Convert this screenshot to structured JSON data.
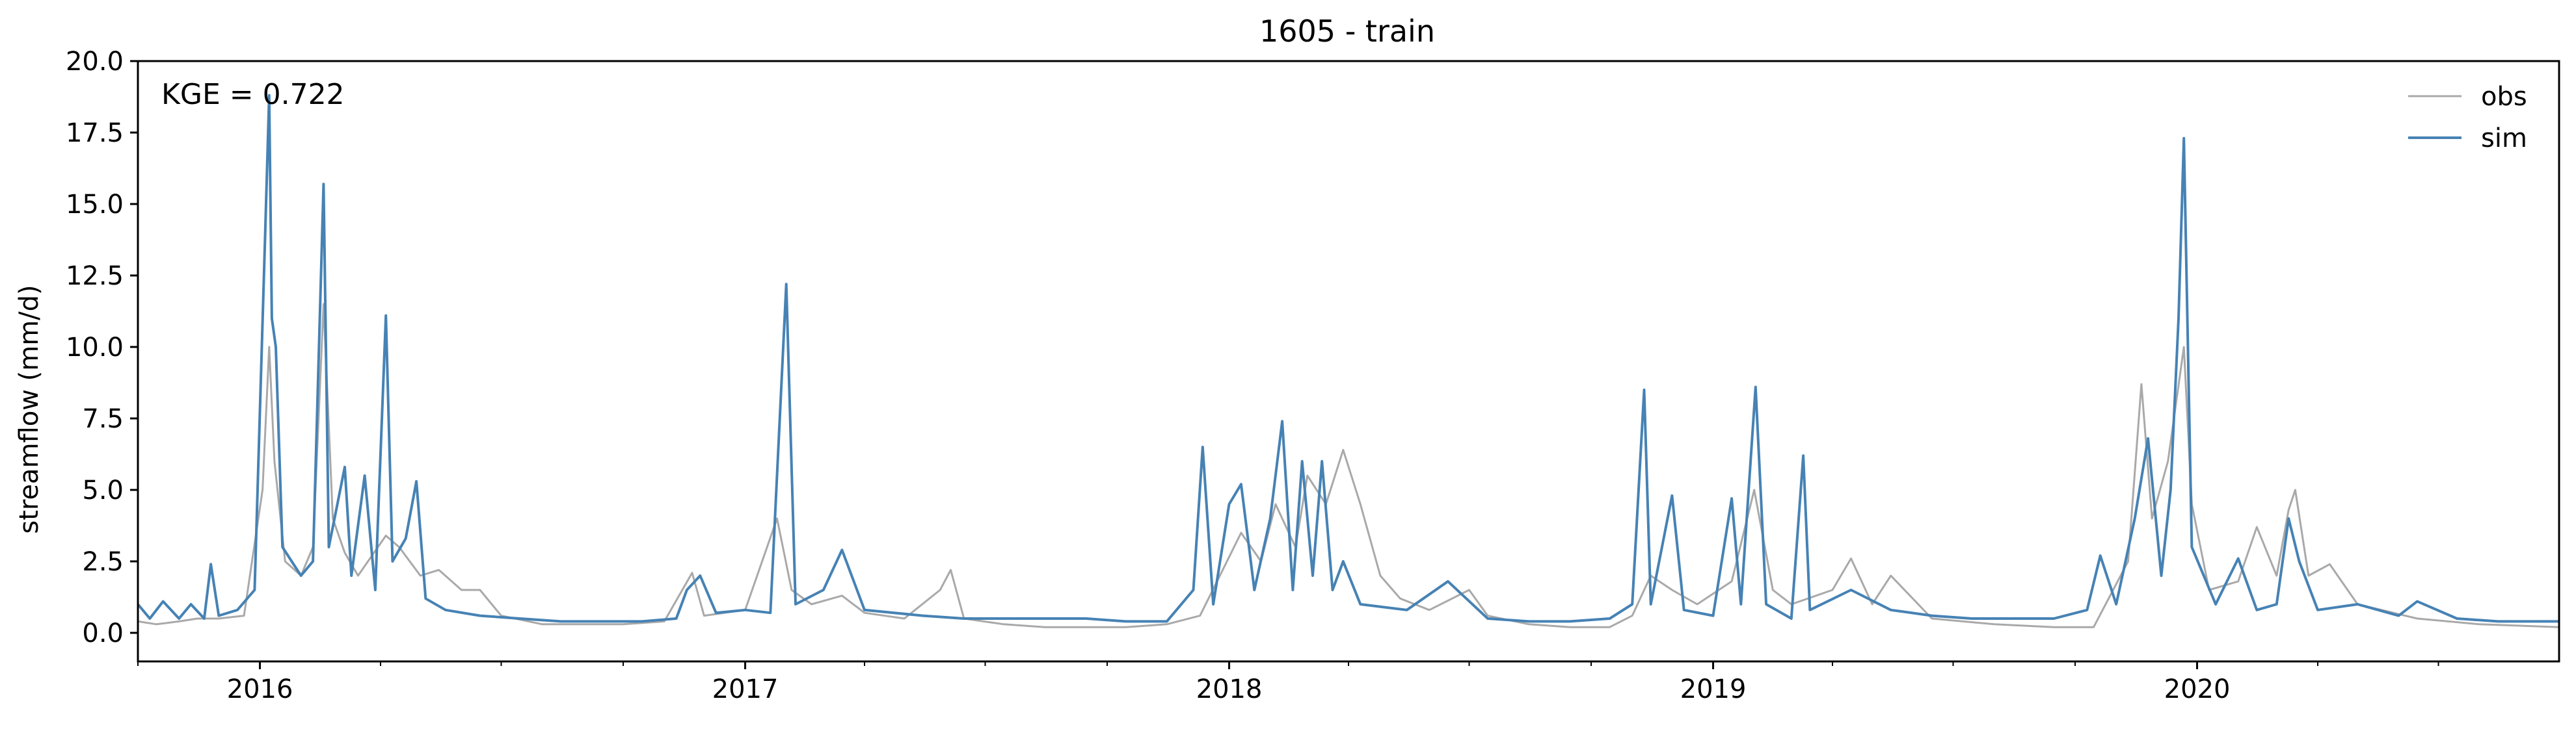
{
  "chart_data": {
    "type": "line",
    "title": "1605 - train",
    "xlabel": "",
    "ylabel": "streamflow (mm/d)",
    "annotation": "KGE = 0.722",
    "xlim": [
      "2015-10-01",
      "2020-09-30"
    ],
    "ylim": [
      -1.0,
      20.0
    ],
    "x_ticks": [
      "2016",
      "2017",
      "2018",
      "2019",
      "2020"
    ],
    "x_tick_dates": [
      "2016-01-01",
      "2017-01-01",
      "2018-01-01",
      "2019-01-01",
      "2020-01-01"
    ],
    "y_ticks": [
      "0.0",
      "2.5",
      "5.0",
      "7.5",
      "10.0",
      "12.5",
      "15.0",
      "17.5",
      "20.0"
    ],
    "y_tick_values": [
      0.0,
      2.5,
      5.0,
      7.5,
      10.0,
      12.5,
      15.0,
      17.5,
      20.0
    ],
    "legend_position": "upper right",
    "grid": false,
    "series": [
      {
        "name": "obs",
        "color": "#a9a9a9",
        "points": [
          [
            "2015-10-01",
            0.4
          ],
          [
            "2015-10-15",
            0.3
          ],
          [
            "2015-11-01",
            0.4
          ],
          [
            "2015-11-15",
            0.5
          ],
          [
            "2015-12-01",
            0.5
          ],
          [
            "2015-12-20",
            0.6
          ],
          [
            "2016-01-03",
            5.0
          ],
          [
            "2016-01-08",
            10.0
          ],
          [
            "2016-01-12",
            6.0
          ],
          [
            "2016-01-20",
            2.5
          ],
          [
            "2016-02-01",
            2.0
          ],
          [
            "2016-02-10",
            3.0
          ],
          [
            "2016-02-18",
            11.5
          ],
          [
            "2016-02-25",
            4.0
          ],
          [
            "2016-03-05",
            2.8
          ],
          [
            "2016-03-15",
            2.0
          ],
          [
            "2016-04-05",
            3.4
          ],
          [
            "2016-04-15",
            3.0
          ],
          [
            "2016-05-01",
            2.0
          ],
          [
            "2016-05-15",
            2.2
          ],
          [
            "2016-06-01",
            1.5
          ],
          [
            "2016-06-15",
            1.5
          ],
          [
            "2016-07-01",
            0.6
          ],
          [
            "2016-08-01",
            0.3
          ],
          [
            "2016-09-01",
            0.3
          ],
          [
            "2016-10-01",
            0.3
          ],
          [
            "2016-11-01",
            0.4
          ],
          [
            "2016-11-22",
            2.1
          ],
          [
            "2016-12-01",
            0.6
          ],
          [
            "2017-01-01",
            0.8
          ],
          [
            "2017-01-25",
            4.0
          ],
          [
            "2017-02-05",
            1.5
          ],
          [
            "2017-02-20",
            1.0
          ],
          [
            "2017-03-15",
            1.3
          ],
          [
            "2017-04-01",
            0.7
          ],
          [
            "2017-05-01",
            0.5
          ],
          [
            "2017-05-28",
            1.5
          ],
          [
            "2017-06-05",
            2.2
          ],
          [
            "2017-06-15",
            0.5
          ],
          [
            "2017-07-15",
            0.3
          ],
          [
            "2017-08-15",
            0.2
          ],
          [
            "2017-09-15",
            0.2
          ],
          [
            "2017-10-15",
            0.2
          ],
          [
            "2017-11-15",
            0.3
          ],
          [
            "2017-12-10",
            0.6
          ],
          [
            "2017-12-25",
            2.0
          ],
          [
            "2018-01-10",
            3.5
          ],
          [
            "2018-01-25",
            2.5
          ],
          [
            "2018-02-05",
            4.5
          ],
          [
            "2018-02-20",
            3.0
          ],
          [
            "2018-03-01",
            5.5
          ],
          [
            "2018-03-15",
            4.5
          ],
          [
            "2018-03-28",
            6.4
          ],
          [
            "2018-04-10",
            4.5
          ],
          [
            "2018-04-25",
            2.0
          ],
          [
            "2018-05-10",
            1.2
          ],
          [
            "2018-06-01",
            0.8
          ],
          [
            "2018-07-01",
            1.5
          ],
          [
            "2018-07-15",
            0.6
          ],
          [
            "2018-08-15",
            0.3
          ],
          [
            "2018-09-15",
            0.2
          ],
          [
            "2018-10-15",
            0.2
          ],
          [
            "2018-11-01",
            0.6
          ],
          [
            "2018-11-15",
            2.0
          ],
          [
            "2018-12-01",
            1.5
          ],
          [
            "2018-12-20",
            1.0
          ],
          [
            "2019-01-15",
            1.8
          ],
          [
            "2019-02-01",
            5.0
          ],
          [
            "2019-02-15",
            1.5
          ],
          [
            "2019-03-01",
            1.0
          ],
          [
            "2019-04-01",
            1.5
          ],
          [
            "2019-04-15",
            2.6
          ],
          [
            "2019-05-01",
            1.0
          ],
          [
            "2019-05-15",
            2.0
          ],
          [
            "2019-06-15",
            0.5
          ],
          [
            "2019-08-01",
            0.3
          ],
          [
            "2019-09-15",
            0.2
          ],
          [
            "2019-10-15",
            0.2
          ],
          [
            "2019-11-10",
            2.5
          ],
          [
            "2019-11-20",
            8.7
          ],
          [
            "2019-11-28",
            4.0
          ],
          [
            "2019-12-10",
            6.0
          ],
          [
            "2019-12-22",
            10.0
          ],
          [
            "2019-12-28",
            4.5
          ],
          [
            "2020-01-10",
            1.5
          ],
          [
            "2020-02-01",
            1.8
          ],
          [
            "2020-02-15",
            3.7
          ],
          [
            "2020-03-01",
            2.0
          ],
          [
            "2020-03-10",
            4.3
          ],
          [
            "2020-03-15",
            5.0
          ],
          [
            "2020-03-25",
            2.0
          ],
          [
            "2020-04-10",
            2.4
          ],
          [
            "2020-05-01",
            1.0
          ],
          [
            "2020-06-15",
            0.5
          ],
          [
            "2020-08-01",
            0.3
          ],
          [
            "2020-09-30",
            0.2
          ]
        ]
      },
      {
        "name": "sim",
        "color": "#4682b4",
        "points": [
          [
            "2015-10-01",
            1.0
          ],
          [
            "2015-10-10",
            0.5
          ],
          [
            "2015-10-20",
            1.1
          ],
          [
            "2015-11-01",
            0.5
          ],
          [
            "2015-11-10",
            1.0
          ],
          [
            "2015-11-20",
            0.5
          ],
          [
            "2015-11-25",
            2.4
          ],
          [
            "2015-12-01",
            0.6
          ],
          [
            "2015-12-15",
            0.8
          ],
          [
            "2015-12-28",
            1.5
          ],
          [
            "2016-01-05",
            14.0
          ],
          [
            "2016-01-08",
            18.8
          ],
          [
            "2016-01-10",
            11.0
          ],
          [
            "2016-01-13",
            10.0
          ],
          [
            "2016-01-18",
            3.0
          ],
          [
            "2016-02-01",
            2.0
          ],
          [
            "2016-02-10",
            2.5
          ],
          [
            "2016-02-18",
            15.7
          ],
          [
            "2016-02-22",
            3.0
          ],
          [
            "2016-03-05",
            5.8
          ],
          [
            "2016-03-10",
            2.0
          ],
          [
            "2016-03-20",
            5.5
          ],
          [
            "2016-03-28",
            1.5
          ],
          [
            "2016-04-05",
            11.1
          ],
          [
            "2016-04-10",
            2.5
          ],
          [
            "2016-04-20",
            3.3
          ],
          [
            "2016-04-28",
            5.3
          ],
          [
            "2016-05-05",
            1.2
          ],
          [
            "2016-05-20",
            0.8
          ],
          [
            "2016-06-15",
            0.6
          ],
          [
            "2016-07-15",
            0.5
          ],
          [
            "2016-08-15",
            0.4
          ],
          [
            "2016-09-15",
            0.4
          ],
          [
            "2016-10-15",
            0.4
          ],
          [
            "2016-11-10",
            0.5
          ],
          [
            "2016-11-18",
            1.5
          ],
          [
            "2016-11-28",
            2.0
          ],
          [
            "2016-12-10",
            0.7
          ],
          [
            "2017-01-01",
            0.8
          ],
          [
            "2017-01-20",
            0.7
          ],
          [
            "2017-02-01",
            12.2
          ],
          [
            "2017-02-08",
            1.0
          ],
          [
            "2017-03-01",
            1.5
          ],
          [
            "2017-03-15",
            2.9
          ],
          [
            "2017-04-01",
            0.8
          ],
          [
            "2017-05-15",
            0.6
          ],
          [
            "2017-06-15",
            0.5
          ],
          [
            "2017-07-15",
            0.5
          ],
          [
            "2017-08-15",
            0.5
          ],
          [
            "2017-09-15",
            0.5
          ],
          [
            "2017-10-15",
            0.4
          ],
          [
            "2017-11-15",
            0.4
          ],
          [
            "2017-12-05",
            1.5
          ],
          [
            "2017-12-12",
            6.5
          ],
          [
            "2017-12-20",
            1.0
          ],
          [
            "2018-01-01",
            4.5
          ],
          [
            "2018-01-10",
            5.2
          ],
          [
            "2018-01-20",
            1.5
          ],
          [
            "2018-02-01",
            4.0
          ],
          [
            "2018-02-10",
            7.4
          ],
          [
            "2018-02-18",
            1.5
          ],
          [
            "2018-02-25",
            6.0
          ],
          [
            "2018-03-05",
            2.0
          ],
          [
            "2018-03-12",
            6.0
          ],
          [
            "2018-03-20",
            1.5
          ],
          [
            "2018-03-28",
            2.5
          ],
          [
            "2018-04-10",
            1.0
          ],
          [
            "2018-05-15",
            0.8
          ],
          [
            "2018-06-15",
            1.8
          ],
          [
            "2018-07-15",
            0.5
          ],
          [
            "2018-08-15",
            0.4
          ],
          [
            "2018-09-15",
            0.4
          ],
          [
            "2018-10-15",
            0.5
          ],
          [
            "2018-11-01",
            1.0
          ],
          [
            "2018-11-10",
            8.5
          ],
          [
            "2018-11-15",
            1.0
          ],
          [
            "2018-12-01",
            4.8
          ],
          [
            "2018-12-10",
            0.8
          ],
          [
            "2019-01-01",
            0.6
          ],
          [
            "2019-01-15",
            4.7
          ],
          [
            "2019-01-22",
            1.0
          ],
          [
            "2019-02-02",
            8.6
          ],
          [
            "2019-02-10",
            1.0
          ],
          [
            "2019-03-01",
            0.5
          ],
          [
            "2019-03-10",
            6.2
          ],
          [
            "2019-03-15",
            0.8
          ],
          [
            "2019-04-15",
            1.5
          ],
          [
            "2019-05-15",
            0.8
          ],
          [
            "2019-06-15",
            0.6
          ],
          [
            "2019-07-15",
            0.5
          ],
          [
            "2019-08-15",
            0.5
          ],
          [
            "2019-09-15",
            0.5
          ],
          [
            "2019-10-10",
            0.8
          ],
          [
            "2019-10-20",
            2.7
          ],
          [
            "2019-11-01",
            1.0
          ],
          [
            "2019-11-15",
            4.0
          ],
          [
            "2019-11-25",
            6.8
          ],
          [
            "2019-12-05",
            2.0
          ],
          [
            "2019-12-12",
            5.0
          ],
          [
            "2019-12-18",
            11.0
          ],
          [
            "2019-12-22",
            17.3
          ],
          [
            "2019-12-28",
            3.0
          ],
          [
            "2020-01-15",
            1.0
          ],
          [
            "2020-02-01",
            2.6
          ],
          [
            "2020-02-15",
            0.8
          ],
          [
            "2020-03-01",
            1.0
          ],
          [
            "2020-03-10",
            4.0
          ],
          [
            "2020-03-18",
            2.5
          ],
          [
            "2020-04-01",
            0.8
          ],
          [
            "2020-05-01",
            1.0
          ],
          [
            "2020-06-01",
            0.6
          ],
          [
            "2020-06-15",
            1.1
          ],
          [
            "2020-07-15",
            0.5
          ],
          [
            "2020-08-15",
            0.4
          ],
          [
            "2020-09-30",
            0.4
          ]
        ]
      }
    ]
  }
}
